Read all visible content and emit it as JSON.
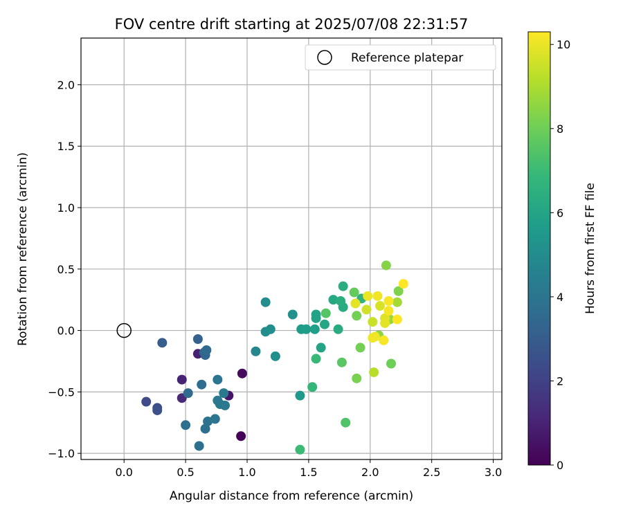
{
  "chart_data": {
    "type": "scatter",
    "title": "FOV centre drift starting at 2025/07/08 22:31:57",
    "xlabel": "Angular distance from reference (arcmin)",
    "ylabel": "Rotation from reference (arcmin)",
    "xlim": [
      -0.35,
      3.07
    ],
    "ylim": [
      -1.05,
      2.38
    ],
    "xticks": [
      0.0,
      0.5,
      1.0,
      1.5,
      2.0,
      2.5,
      3.0
    ],
    "xtick_labels": [
      "0.0",
      "0.5",
      "1.0",
      "1.5",
      "2.0",
      "2.5",
      "3.0"
    ],
    "yticks": [
      -1.0,
      -0.5,
      0.0,
      0.5,
      1.0,
      1.5,
      2.0
    ],
    "ytick_labels": [
      "−1.0",
      "−0.5",
      "0.0",
      "0.5",
      "1.0",
      "1.5",
      "2.0"
    ],
    "grid": true,
    "legend": {
      "placement": "top-right",
      "entries": [
        {
          "label": "Reference platepar",
          "marker": "open-circle"
        }
      ]
    },
    "reference_point": {
      "x": 0.0,
      "y": 0.0
    },
    "colorbar": {
      "label": "Hours from first FF file",
      "colormap": "viridis",
      "min": 0,
      "max": 10.3,
      "ticks": [
        0,
        2,
        4,
        6,
        8,
        10
      ],
      "tick_labels": [
        "0",
        "2",
        "4",
        "6",
        "8",
        "10"
      ],
      "stops": [
        "#440154",
        "#482878",
        "#3e4a89",
        "#31688e",
        "#26828e",
        "#1f9e89",
        "#35b779",
        "#6ece58",
        "#b5de2b",
        "#fde725"
      ]
    },
    "points": [
      {
        "x": 0.95,
        "y": -0.86,
        "h": 0.1
      },
      {
        "x": 0.96,
        "y": -0.35,
        "h": 0.3
      },
      {
        "x": 0.85,
        "y": -0.53,
        "h": 0.6
      },
      {
        "x": 0.6,
        "y": -0.19,
        "h": 0.9
      },
      {
        "x": 0.47,
        "y": -0.4,
        "h": 1.0
      },
      {
        "x": 0.47,
        "y": -0.55,
        "h": 1.2
      },
      {
        "x": 0.18,
        "y": -0.58,
        "h": 2.3
      },
      {
        "x": 0.27,
        "y": -0.63,
        "h": 2.4
      },
      {
        "x": 0.27,
        "y": -0.65,
        "h": 2.5
      },
      {
        "x": 0.31,
        "y": -0.1,
        "h": 3.0
      },
      {
        "x": 0.6,
        "y": -0.07,
        "h": 3.2
      },
      {
        "x": 0.65,
        "y": -0.18,
        "h": 3.3
      },
      {
        "x": 0.66,
        "y": -0.2,
        "h": 3.4
      },
      {
        "x": 0.67,
        "y": -0.16,
        "h": 3.5
      },
      {
        "x": 0.63,
        "y": -0.44,
        "h": 3.6
      },
      {
        "x": 0.52,
        "y": -0.51,
        "h": 3.6
      },
      {
        "x": 0.5,
        "y": -0.77,
        "h": 3.7
      },
      {
        "x": 0.61,
        "y": -0.94,
        "h": 3.8
      },
      {
        "x": 0.66,
        "y": -0.8,
        "h": 3.8
      },
      {
        "x": 0.68,
        "y": -0.74,
        "h": 3.9
      },
      {
        "x": 0.74,
        "y": -0.72,
        "h": 4.0
      },
      {
        "x": 0.76,
        "y": -0.4,
        "h": 4.0
      },
      {
        "x": 0.76,
        "y": -0.57,
        "h": 4.1
      },
      {
        "x": 0.78,
        "y": -0.6,
        "h": 4.1
      },
      {
        "x": 0.81,
        "y": -0.51,
        "h": 4.2
      },
      {
        "x": 0.82,
        "y": -0.61,
        "h": 4.2
      },
      {
        "x": 1.07,
        "y": -0.17,
        "h": 4.8
      },
      {
        "x": 1.15,
        "y": -0.01,
        "h": 5.0
      },
      {
        "x": 1.15,
        "y": 0.23,
        "h": 5.0
      },
      {
        "x": 1.19,
        "y": 0.01,
        "h": 5.1
      },
      {
        "x": 1.23,
        "y": -0.21,
        "h": 5.1
      },
      {
        "x": 1.37,
        "y": 0.13,
        "h": 5.2
      },
      {
        "x": 1.43,
        "y": -0.53,
        "h": 5.5
      },
      {
        "x": 1.44,
        "y": 0.01,
        "h": 5.6
      },
      {
        "x": 1.48,
        "y": 0.01,
        "h": 5.7
      },
      {
        "x": 1.55,
        "y": 0.01,
        "h": 5.8
      },
      {
        "x": 1.56,
        "y": 0.1,
        "h": 5.9
      },
      {
        "x": 1.56,
        "y": 0.13,
        "h": 5.9
      },
      {
        "x": 1.6,
        "y": -0.14,
        "h": 6.0
      },
      {
        "x": 1.63,
        "y": 0.05,
        "h": 6.1
      },
      {
        "x": 1.7,
        "y": 0.25,
        "h": 6.2
      },
      {
        "x": 1.74,
        "y": 0.01,
        "h": 6.3
      },
      {
        "x": 1.78,
        "y": 0.19,
        "h": 6.3
      },
      {
        "x": 1.78,
        "y": 0.36,
        "h": 6.4
      },
      {
        "x": 1.76,
        "y": 0.24,
        "h": 6.4
      },
      {
        "x": 1.93,
        "y": 0.26,
        "h": 6.6
      },
      {
        "x": 1.53,
        "y": -0.46,
        "h": 6.8
      },
      {
        "x": 1.56,
        "y": -0.23,
        "h": 6.9
      },
      {
        "x": 1.43,
        "y": -0.97,
        "h": 7.0
      },
      {
        "x": 1.8,
        "y": -0.75,
        "h": 7.4
      },
      {
        "x": 1.64,
        "y": 0.14,
        "h": 7.5
      },
      {
        "x": 1.77,
        "y": -0.26,
        "h": 7.6
      },
      {
        "x": 1.87,
        "y": 0.31,
        "h": 7.8
      },
      {
        "x": 1.89,
        "y": 0.12,
        "h": 8.1
      },
      {
        "x": 1.92,
        "y": -0.14,
        "h": 8.1
      },
      {
        "x": 1.89,
        "y": -0.39,
        "h": 8.2
      },
      {
        "x": 2.17,
        "y": -0.27,
        "h": 8.0
      },
      {
        "x": 2.23,
        "y": 0.32,
        "h": 8.3
      },
      {
        "x": 2.13,
        "y": 0.53,
        "h": 8.4
      },
      {
        "x": 2.07,
        "y": -0.04,
        "h": 8.5
      },
      {
        "x": 2.16,
        "y": 0.09,
        "h": 8.7
      },
      {
        "x": 2.22,
        "y": 0.23,
        "h": 8.9
      },
      {
        "x": 2.03,
        "y": -0.34,
        "h": 9.2
      },
      {
        "x": 2.02,
        "y": 0.07,
        "h": 9.5
      },
      {
        "x": 1.97,
        "y": 0.17,
        "h": 9.6
      },
      {
        "x": 2.08,
        "y": 0.2,
        "h": 9.7
      },
      {
        "x": 2.12,
        "y": 0.1,
        "h": 9.8
      },
      {
        "x": 2.12,
        "y": 0.06,
        "h": 9.9
      },
      {
        "x": 1.88,
        "y": 0.22,
        "h": 9.9
      },
      {
        "x": 1.98,
        "y": 0.28,
        "h": 10.0
      },
      {
        "x": 2.06,
        "y": 0.28,
        "h": 10.1
      },
      {
        "x": 2.02,
        "y": -0.06,
        "h": 10.1
      },
      {
        "x": 2.04,
        "y": -0.05,
        "h": 10.1
      },
      {
        "x": 2.11,
        "y": -0.08,
        "h": 10.2
      },
      {
        "x": 2.15,
        "y": 0.24,
        "h": 10.2
      },
      {
        "x": 2.15,
        "y": 0.16,
        "h": 10.2
      },
      {
        "x": 2.22,
        "y": 0.09,
        "h": 10.3
      },
      {
        "x": 2.27,
        "y": 0.38,
        "h": 10.3
      }
    ]
  }
}
